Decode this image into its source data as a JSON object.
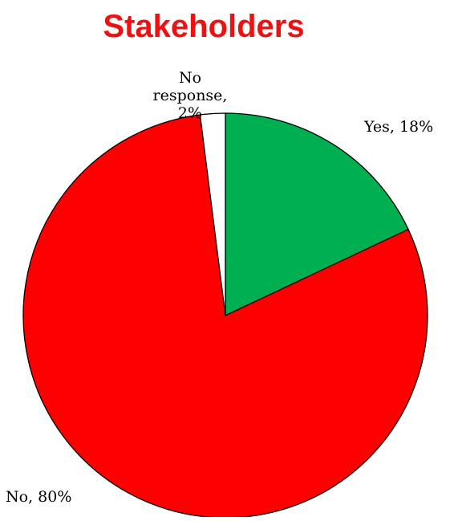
{
  "chart_data": {
    "type": "pie",
    "title": "Stakeholders",
    "title_color": "#ee1111",
    "start_angle_deg": 0,
    "direction": "clockwise",
    "slices": [
      {
        "label": "Yes",
        "value": 18,
        "display": "Yes, 18%",
        "color": "#00b050"
      },
      {
        "label": "No",
        "value": 80,
        "display": "No, 80%",
        "color": "#ff0000"
      },
      {
        "label": "No response",
        "value": 2,
        "display_lines": [
          "No",
          "response,",
          "2%"
        ],
        "color": "#ffffff"
      }
    ],
    "legend": "none"
  }
}
